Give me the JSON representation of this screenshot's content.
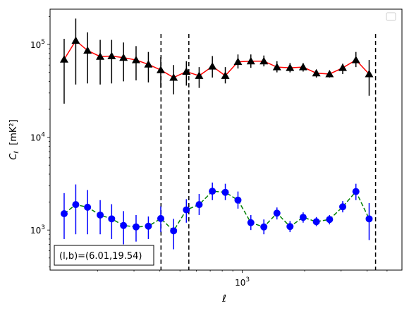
{
  "chart_data": {
    "type": "scatter",
    "title": "",
    "xlabel": "ℓ",
    "ylabel_main": "C",
    "ylabel_sub": "ℓ",
    "ylabel_unit": "[mK²]",
    "x_scale": "log",
    "y_scale": "log",
    "xlim": [
      118,
      5900
    ],
    "ylim": [
      370,
      240000
    ],
    "x_tick_labels": [
      {
        "value": 1000,
        "base": "10",
        "exp": "3"
      }
    ],
    "y_tick_labels": [
      {
        "value": 1000,
        "base": "10",
        "exp": "3"
      },
      {
        "value": 10000,
        "base": "10",
        "exp": "4"
      },
      {
        "value": 100000,
        "base": "10",
        "exp": "5"
      }
    ],
    "vlines": [
      405,
      552,
      4400
    ],
    "annotation": "(l,b)=(6.01,19.54)",
    "legend": "empty box, top-right",
    "series": [
      {
        "color": "#000000",
        "line_color": "#ff0000",
        "line_style": "solid",
        "marker": "triangle",
        "points": [
          {
            "x": 138,
            "y": 69000,
            "lo": 23000,
            "hi": 115000
          },
          {
            "x": 157,
            "y": 110000,
            "lo": 37000,
            "hi": 190000
          },
          {
            "x": 179,
            "y": 86000,
            "lo": 38000,
            "hi": 135000
          },
          {
            "x": 206,
            "y": 74000,
            "lo": 37000,
            "hi": 112000
          },
          {
            "x": 234,
            "y": 75000,
            "lo": 38000,
            "hi": 112000
          },
          {
            "x": 267,
            "y": 72000,
            "lo": 40000,
            "hi": 105000
          },
          {
            "x": 307,
            "y": 68000,
            "lo": 41000,
            "hi": 96000
          },
          {
            "x": 352,
            "y": 61000,
            "lo": 39000,
            "hi": 83000
          },
          {
            "x": 404,
            "y": 53000,
            "lo": 34000,
            "hi": 73000
          },
          {
            "x": 466,
            "y": 44000,
            "lo": 29000,
            "hi": 60000
          },
          {
            "x": 537,
            "y": 51000,
            "lo": 36000,
            "hi": 66000
          },
          {
            "x": 619,
            "y": 46000,
            "lo": 34000,
            "hi": 57000
          },
          {
            "x": 717,
            "y": 58000,
            "lo": 44000,
            "hi": 75000
          },
          {
            "x": 828,
            "y": 46000,
            "lo": 38000,
            "hi": 57000
          },
          {
            "x": 953,
            "y": 65000,
            "lo": 55000,
            "hi": 78000
          },
          {
            "x": 1100,
            "y": 66000,
            "lo": 56000,
            "hi": 78000
          },
          {
            "x": 1271,
            "y": 66000,
            "lo": 58000,
            "hi": 76000
          },
          {
            "x": 1470,
            "y": 57000,
            "lo": 50000,
            "hi": 66000
          },
          {
            "x": 1700,
            "y": 56000,
            "lo": 50000,
            "hi": 63000
          },
          {
            "x": 1967,
            "y": 57000,
            "lo": 51000,
            "hi": 63000
          },
          {
            "x": 2278,
            "y": 49000,
            "lo": 44000,
            "hi": 53000
          },
          {
            "x": 2638,
            "y": 48000,
            "lo": 44000,
            "hi": 52000
          },
          {
            "x": 3054,
            "y": 56000,
            "lo": 48000,
            "hi": 62000
          },
          {
            "x": 3537,
            "y": 68000,
            "lo": 57000,
            "hi": 83000
          },
          {
            "x": 4097,
            "y": 48000,
            "lo": 28000,
            "hi": 68000
          }
        ]
      },
      {
        "color": "#0000ff",
        "line_color": "#008000",
        "line_style": "dashed",
        "marker": "circle",
        "points": [
          {
            "x": 138,
            "y": 1500,
            "lo": 800,
            "hi": 2500
          },
          {
            "x": 157,
            "y": 1880,
            "lo": 900,
            "hi": 3100
          },
          {
            "x": 179,
            "y": 1760,
            "lo": 900,
            "hi": 2700
          },
          {
            "x": 206,
            "y": 1450,
            "lo": 900,
            "hi": 2100
          },
          {
            "x": 234,
            "y": 1320,
            "lo": 800,
            "hi": 1900
          },
          {
            "x": 267,
            "y": 1120,
            "lo": 700,
            "hi": 1600
          },
          {
            "x": 307,
            "y": 1080,
            "lo": 750,
            "hi": 1450
          },
          {
            "x": 352,
            "y": 1100,
            "lo": 800,
            "hi": 1400
          },
          {
            "x": 404,
            "y": 1330,
            "lo": 950,
            "hi": 1800
          },
          {
            "x": 466,
            "y": 980,
            "lo": 620,
            "hi": 1320
          },
          {
            "x": 537,
            "y": 1650,
            "lo": 1200,
            "hi": 2150
          },
          {
            "x": 619,
            "y": 1880,
            "lo": 1450,
            "hi": 2450
          },
          {
            "x": 717,
            "y": 2620,
            "lo": 2100,
            "hi": 3250
          },
          {
            "x": 828,
            "y": 2550,
            "lo": 2100,
            "hi": 3150
          },
          {
            "x": 953,
            "y": 2100,
            "lo": 1700,
            "hi": 2600
          },
          {
            "x": 1100,
            "y": 1200,
            "lo": 1000,
            "hi": 1450
          },
          {
            "x": 1271,
            "y": 1080,
            "lo": 900,
            "hi": 1300
          },
          {
            "x": 1470,
            "y": 1520,
            "lo": 1300,
            "hi": 1750
          },
          {
            "x": 1700,
            "y": 1090,
            "lo": 950,
            "hi": 1250
          },
          {
            "x": 1967,
            "y": 1370,
            "lo": 1200,
            "hi": 1550
          },
          {
            "x": 2278,
            "y": 1230,
            "lo": 1100,
            "hi": 1380
          },
          {
            "x": 2638,
            "y": 1300,
            "lo": 1150,
            "hi": 1450
          },
          {
            "x": 3054,
            "y": 1780,
            "lo": 1550,
            "hi": 2050
          },
          {
            "x": 3537,
            "y": 2600,
            "lo": 2100,
            "hi": 3150
          },
          {
            "x": 4097,
            "y": 1320,
            "lo": 780,
            "hi": 1950
          }
        ]
      }
    ]
  }
}
